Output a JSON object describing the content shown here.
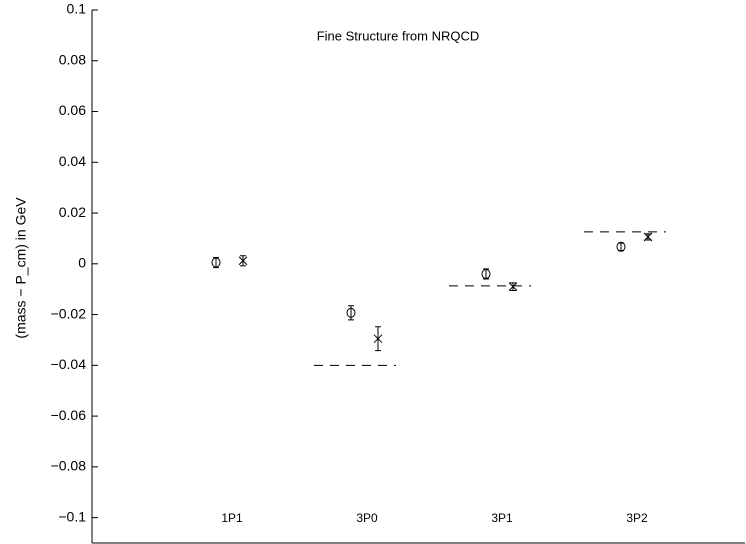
{
  "chart_data": {
    "type": "errorbar",
    "title": "Fine Structure from NRQCD",
    "ylabel": "(mass − P_cm) in GeV",
    "categories": [
      "1P1",
      "3P0",
      "3P1",
      "3P2"
    ],
    "ylim": [
      -0.11,
      0.1
    ],
    "yticks": [
      {
        "value": -0.1,
        "label": "−0.1"
      },
      {
        "value": -0.08,
        "label": "−0.08"
      },
      {
        "value": -0.06,
        "label": "−0.06"
      },
      {
        "value": -0.04,
        "label": "−0.04"
      },
      {
        "value": -0.02,
        "label": "−0.02"
      },
      0,
      0.02,
      0.04,
      0.06,
      0.08,
      0.1
    ],
    "grid": false,
    "color": "#000000",
    "series": [
      {
        "marker": "circle",
        "values": [
          0.0005,
          -0.0193,
          -0.004,
          0.0067
        ],
        "errors": [
          0.002,
          0.0028,
          0.002,
          0.0015
        ]
      },
      {
        "marker": "x",
        "values": [
          0.0012,
          -0.0295,
          -0.009,
          0.0106
        ],
        "errors": [
          0.002,
          0.0047,
          0.0015,
          0.0012
        ]
      },
      {
        "marker": "dashed-line",
        "values": [
          null,
          -0.04,
          -0.0087,
          0.0126
        ]
      }
    ]
  }
}
